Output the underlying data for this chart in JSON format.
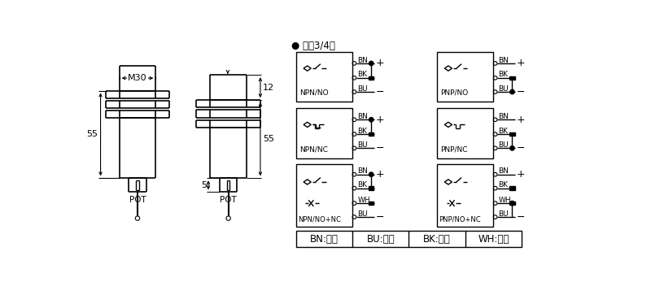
{
  "bg_color": "#ffffff",
  "line_color": "#000000",
  "title_dc": "● 直涁3/4线",
  "legend_items": [
    "BN:棕色",
    "BU:兰色",
    "BK:黑色",
    "WH:白色"
  ],
  "circuit_labels_left": [
    "NPN/NO",
    "NPN/NC",
    "NPN/NO+NC"
  ],
  "circuit_labels_right": [
    "PNP/NO",
    "PNP/NC",
    "PNP/NO+NC"
  ],
  "wire_labels_3": [
    "BN",
    "BK",
    "BU"
  ],
  "wire_labels_4": [
    "BN",
    "BK",
    "WH",
    "BU"
  ],
  "dim_M30": "M30",
  "dim_55_left": "55",
  "dim_55_right": "55",
  "dim_12": "12",
  "dim_5": "5",
  "label_POT_left": "POT",
  "label_POT_right": "POT"
}
